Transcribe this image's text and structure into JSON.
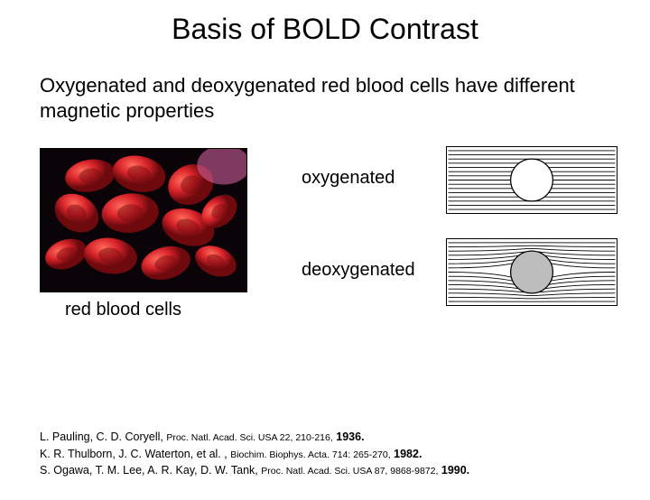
{
  "title": "Basis of BOLD Contrast",
  "subtitle": "Oxygenated and deoxygenated red blood cells have different magnetic properties",
  "labels": {
    "oxygenated": "oxygenated",
    "deoxygenated": "deoxygenated",
    "photo_caption": "red blood cells"
  },
  "photo": {
    "background": "#0a0408",
    "cell_fill": "#d8232a",
    "cell_highlight": "#ff6a5a",
    "cell_shadow": "#6e0a0e",
    "accent": "#e06aa8"
  },
  "field_diagrams": {
    "oxy": {
      "lines": 15,
      "line_color": "#000000",
      "line_width": 0.9,
      "circle_r": 24,
      "circle_stroke": "#000000",
      "distortion": 0
    },
    "deoxy": {
      "lines": 15,
      "line_color": "#000000",
      "line_width": 0.9,
      "circle_r": 24,
      "circle_stroke": "#000000",
      "circle_fill": "#bdbdbd",
      "distortion": 10
    }
  },
  "references": [
    {
      "authors": "L. Pauling, C. D. Coryell,",
      "journal": "Proc. Natl. Acad. Sci. USA 22, 210-216,",
      "year": "1936."
    },
    {
      "authors": "K. R. Thulborn, J. C. Waterton, et al. ,",
      "journal": "Biochim. Biophys. Acta. 714: 265-270,",
      "year": "1982."
    },
    {
      "authors": "S. Ogawa, T. M. Lee, A. R. Kay, D. W. Tank,",
      "journal": "Proc. Natl. Acad. Sci. USA 87, 9868-9872,",
      "year": "1990."
    }
  ]
}
